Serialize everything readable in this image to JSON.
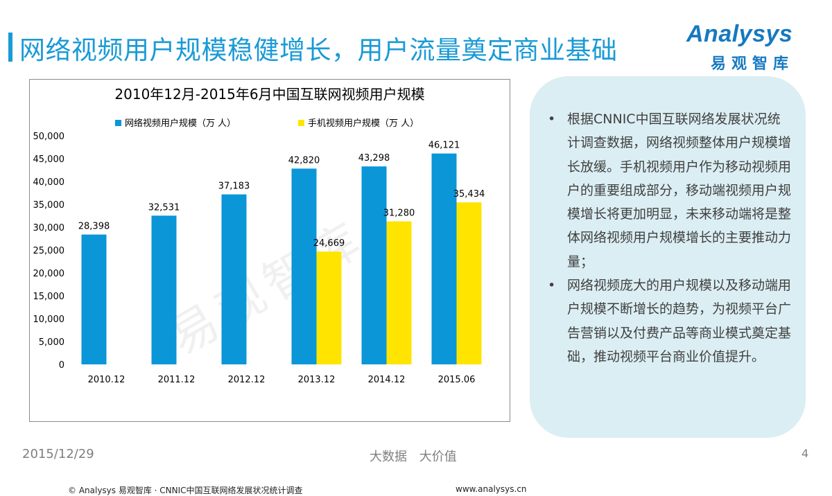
{
  "header": {
    "title": "网络视频用户规模稳健增长，用户流量奠定商业基础",
    "logo_en": "Analysys",
    "logo_cn": "易观智库"
  },
  "colors": {
    "accent": "#1a9ad6",
    "bar_blue": "#0b96d8",
    "bar_yellow": "#ffe400",
    "panel_bg": "#dbeef3",
    "logo_blue": "#1679c1"
  },
  "chart_data": {
    "type": "bar",
    "title": "2010年12月-2015年6月中国互联网视频用户规模",
    "categories": [
      "2010.12",
      "2011.12",
      "2012.12",
      "2013.12",
      "2014.12",
      "2015.06"
    ],
    "series": [
      {
        "name": "网络视频用户规模（万 人）",
        "values": [
          28398,
          32531,
          37183,
          42820,
          43298,
          46121
        ],
        "labels": [
          "28,398",
          "32,531",
          "37,183",
          "42,820",
          "43,298",
          "46,121"
        ]
      },
      {
        "name": "手机视频用户规模（万 人）",
        "values": [
          null,
          null,
          null,
          24669,
          31280,
          35434
        ],
        "labels": [
          "",
          "",
          "",
          "24,669",
          "31,280",
          "35,434"
        ]
      }
    ],
    "ylim": [
      0,
      50000
    ],
    "yticks": [
      0,
      5000,
      10000,
      15000,
      20000,
      25000,
      30000,
      35000,
      40000,
      45000,
      50000
    ],
    "ytick_labels": [
      "0",
      "5,000",
      "10,000",
      "15,000",
      "20,000",
      "25,000",
      "30,000",
      "35,000",
      "40,000",
      "45,000",
      "50,000"
    ],
    "grid": false,
    "legend": "top",
    "watermark": "易观智库",
    "source": "© Analysys 易观智库 · CNNIC中国互联网络发展状况统计调查",
    "website": "www.analysys.cn"
  },
  "panel": {
    "bullet": "•",
    "bullets": [
      "根据CNNIC中国互联网络发展状况统计调查数据，网络视频整体用户规模增长放缓。手机视频用户作为移动视频用户的重要组成部分，移动端视频用户规模增长将更加明显，未来移动端将是整体网络视频用户规模增长的主要推动力量；",
      "网络视频庞大的用户规模以及移动端用户规模不断增长的趋势，为视频平台广告营销以及付费产品等商业模式奠定基础，推动视频平台商业价值提升。"
    ]
  },
  "footer": {
    "date": "2015/12/29",
    "tagline": "大数据 大价值",
    "page": "4"
  }
}
